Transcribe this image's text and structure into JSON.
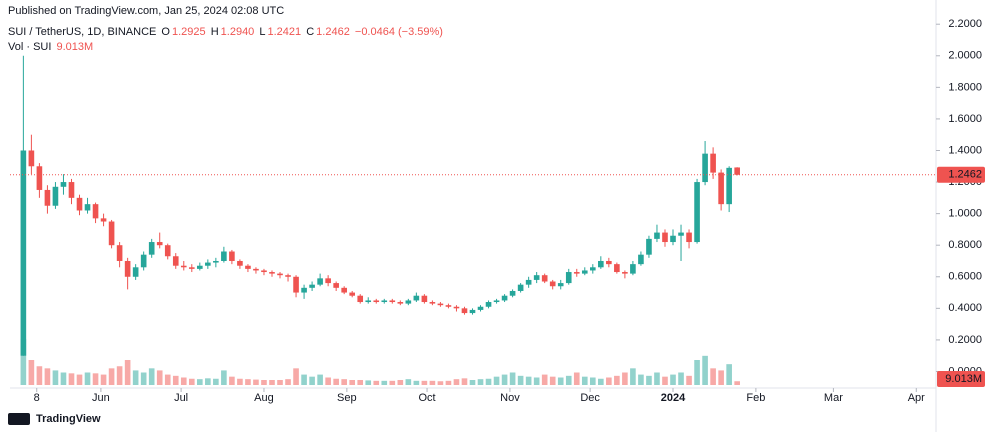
{
  "header": {
    "published": "Published on TradingView.com, Jan 25, 2024 02:08 UTC",
    "symbol": "SUI / TetherUS, 1D, BINANCE",
    "ohlc": [
      {
        "key": "O",
        "label": "1.2925"
      },
      {
        "key": "H",
        "label": "1.2940"
      },
      {
        "key": "L",
        "label": "1.2421"
      },
      {
        "key": "C",
        "label": "1.2462"
      }
    ],
    "change": "−0.0464 (−3.59%)",
    "volume": {
      "key": "Vol · SUI",
      "label": "9.013M"
    }
  },
  "footer": {
    "brand": "TradingView"
  },
  "chart_data": {
    "type": "candlestick",
    "up_color": "#26a69a",
    "down_color": "#ef5350",
    "x": [
      2,
      5,
      8,
      11,
      14,
      17,
      20,
      23,
      26,
      29,
      32,
      35,
      38,
      41,
      44,
      47,
      50,
      53,
      56,
      59,
      62,
      65,
      68,
      71,
      74,
      77,
      80,
      83,
      86,
      89,
      92,
      95,
      98,
      101,
      104,
      107,
      110,
      113,
      116,
      119,
      122,
      125,
      128,
      131,
      134,
      137,
      140,
      143,
      146,
      149,
      152,
      155,
      158,
      161,
      164,
      167,
      170,
      173,
      176,
      179,
      182,
      185,
      188,
      191,
      194,
      197,
      200,
      203,
      206,
      209,
      212,
      215,
      218,
      221,
      224,
      227,
      230,
      233,
      236,
      239,
      242,
      245,
      248,
      251,
      254,
      257,
      260,
      263,
      266,
      269
    ],
    "open": [
      0.1,
      1.4,
      1.3,
      1.15,
      1.05,
      1.17,
      1.2,
      1.1,
      1.02,
      1.06,
      0.97,
      0.95,
      0.8,
      0.7,
      0.6,
      0.66,
      0.74,
      0.82,
      0.8,
      0.73,
      0.67,
      0.66,
      0.65,
      0.67,
      0.69,
      0.7,
      0.76,
      0.7,
      0.67,
      0.65,
      0.64,
      0.63,
      0.62,
      0.61,
      0.6,
      0.5,
      0.53,
      0.55,
      0.59,
      0.56,
      0.53,
      0.5,
      0.48,
      0.44,
      0.45,
      0.44,
      0.45,
      0.44,
      0.43,
      0.45,
      0.48,
      0.44,
      0.43,
      0.42,
      0.41,
      0.4,
      0.37,
      0.39,
      0.41,
      0.44,
      0.45,
      0.48,
      0.51,
      0.55,
      0.58,
      0.61,
      0.57,
      0.54,
      0.56,
      0.63,
      0.62,
      0.64,
      0.66,
      0.7,
      0.68,
      0.63,
      0.62,
      0.68,
      0.74,
      0.84,
      0.88,
      0.82,
      0.86,
      0.88,
      0.82,
      1.2,
      1.38,
      1.26,
      1.06,
      1.2925
    ],
    "high": [
      2.0,
      1.5,
      1.32,
      1.18,
      1.2,
      1.25,
      1.22,
      1.12,
      1.1,
      1.07,
      1.0,
      0.96,
      0.82,
      0.72,
      0.68,
      0.76,
      0.84,
      0.88,
      0.81,
      0.75,
      0.7,
      0.68,
      0.69,
      0.71,
      0.72,
      0.79,
      0.77,
      0.71,
      0.68,
      0.66,
      0.65,
      0.64,
      0.63,
      0.62,
      0.61,
      0.55,
      0.57,
      0.62,
      0.61,
      0.57,
      0.54,
      0.51,
      0.49,
      0.47,
      0.46,
      0.46,
      0.46,
      0.45,
      0.46,
      0.5,
      0.49,
      0.45,
      0.44,
      0.43,
      0.42,
      0.41,
      0.4,
      0.42,
      0.45,
      0.46,
      0.49,
      0.52,
      0.56,
      0.6,
      0.63,
      0.62,
      0.58,
      0.58,
      0.65,
      0.65,
      0.66,
      0.68,
      0.73,
      0.72,
      0.69,
      0.64,
      0.7,
      0.76,
      0.86,
      0.93,
      0.9,
      0.9,
      0.93,
      0.9,
      1.22,
      1.46,
      1.42,
      1.28,
      1.3,
      1.294
    ],
    "low": [
      0.1,
      1.25,
      1.1,
      1.0,
      1.03,
      1.12,
      1.06,
      0.99,
      1.0,
      0.94,
      0.92,
      0.78,
      0.66,
      0.52,
      0.58,
      0.64,
      0.72,
      0.78,
      0.71,
      0.65,
      0.64,
      0.63,
      0.64,
      0.65,
      0.66,
      0.69,
      0.68,
      0.65,
      0.63,
      0.62,
      0.61,
      0.6,
      0.59,
      0.57,
      0.47,
      0.46,
      0.51,
      0.54,
      0.54,
      0.51,
      0.49,
      0.47,
      0.43,
      0.43,
      0.43,
      0.43,
      0.43,
      0.42,
      0.42,
      0.44,
      0.43,
      0.42,
      0.41,
      0.4,
      0.38,
      0.36,
      0.36,
      0.38,
      0.4,
      0.43,
      0.44,
      0.47,
      0.5,
      0.53,
      0.56,
      0.56,
      0.52,
      0.52,
      0.55,
      0.6,
      0.61,
      0.62,
      0.65,
      0.66,
      0.62,
      0.59,
      0.61,
      0.67,
      0.72,
      0.82,
      0.79,
      0.8,
      0.7,
      0.78,
      0.81,
      1.18,
      1.22,
      1.02,
      1.01,
      1.2421
    ],
    "close": [
      1.4,
      1.3,
      1.15,
      1.05,
      1.17,
      1.2,
      1.1,
      1.02,
      1.06,
      0.97,
      0.95,
      0.8,
      0.7,
      0.6,
      0.66,
      0.74,
      0.82,
      0.8,
      0.73,
      0.67,
      0.66,
      0.65,
      0.67,
      0.69,
      0.7,
      0.76,
      0.7,
      0.67,
      0.65,
      0.64,
      0.63,
      0.62,
      0.61,
      0.6,
      0.5,
      0.53,
      0.55,
      0.59,
      0.56,
      0.53,
      0.5,
      0.48,
      0.44,
      0.45,
      0.44,
      0.45,
      0.44,
      0.43,
      0.45,
      0.48,
      0.44,
      0.43,
      0.42,
      0.41,
      0.4,
      0.37,
      0.39,
      0.41,
      0.44,
      0.45,
      0.48,
      0.51,
      0.55,
      0.58,
      0.61,
      0.57,
      0.54,
      0.56,
      0.63,
      0.62,
      0.64,
      0.66,
      0.7,
      0.68,
      0.63,
      0.62,
      0.68,
      0.74,
      0.84,
      0.88,
      0.82,
      0.86,
      0.88,
      0.82,
      1.2,
      1.38,
      1.26,
      1.06,
      1.29,
      1.2462
    ],
    "volume": [
      110,
      60,
      45,
      40,
      35,
      30,
      28,
      25,
      30,
      28,
      25,
      40,
      45,
      60,
      35,
      30,
      40,
      35,
      25,
      22,
      18,
      15,
      14,
      16,
      15,
      35,
      20,
      15,
      14,
      13,
      12,
      12,
      12,
      14,
      40,
      25,
      20,
      25,
      18,
      15,
      14,
      12,
      12,
      11,
      10,
      10,
      10,
      12,
      14,
      10,
      10,
      10,
      9,
      10,
      14,
      16,
      12,
      14,
      15,
      20,
      25,
      30,
      22,
      20,
      18,
      25,
      20,
      18,
      22,
      30,
      20,
      18,
      15,
      18,
      22,
      30,
      40,
      25,
      22,
      30,
      20,
      25,
      30,
      22,
      60,
      70,
      40,
      35,
      50,
      9.013
    ],
    "vlim": [
      0,
      120
    ],
    "xlim": [
      -3,
      343
    ],
    "xticks": [
      {
        "value": 7,
        "label": "8"
      },
      {
        "value": 31,
        "label": "Jun"
      },
      {
        "value": 61,
        "label": "Jul"
      },
      {
        "value": 92,
        "label": "Aug"
      },
      {
        "value": 123,
        "label": "Sep"
      },
      {
        "value": 153,
        "label": "Oct"
      },
      {
        "value": 184,
        "label": "Nov"
      },
      {
        "value": 214,
        "label": "Dec"
      },
      {
        "value": 245,
        "label": "2024"
      },
      {
        "value": 276,
        "label": "Feb"
      },
      {
        "value": 305,
        "label": "Mar"
      },
      {
        "value": 336,
        "label": "Apr"
      }
    ],
    "ylim": [
      -0.13,
      2.29
    ],
    "yticks": [
      {
        "value": 0,
        "label": "0.0000"
      },
      {
        "value": 0.2,
        "label": "0.2000"
      },
      {
        "value": 0.4,
        "label": "0.4000"
      },
      {
        "value": 0.6,
        "label": "0.6000"
      },
      {
        "value": 0.8,
        "label": "0.8000"
      },
      {
        "value": 1.0,
        "label": "1.0000"
      },
      {
        "value": 1.2,
        "label": "1.2000"
      },
      {
        "value": 1.4,
        "label": "1.4000"
      },
      {
        "value": 1.6,
        "label": "1.6000"
      },
      {
        "value": 1.8,
        "label": "1.8000"
      },
      {
        "value": 2.0,
        "label": "2.0000"
      },
      {
        "value": 2.2,
        "label": "2.2000"
      }
    ],
    "grid": false
  }
}
